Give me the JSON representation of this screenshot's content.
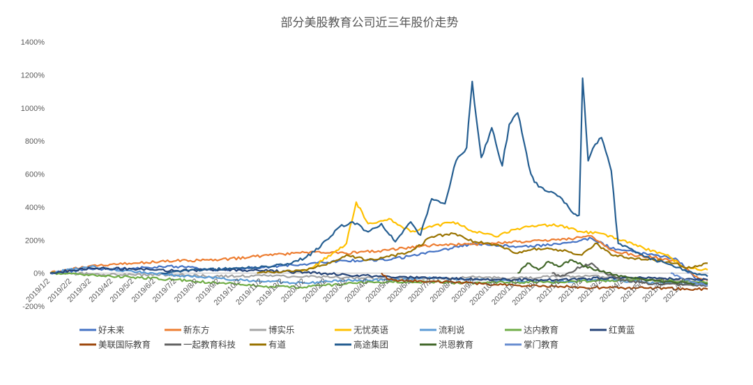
{
  "chart_data": {
    "type": "line",
    "title": "部分美股教育公司近三年股价走势",
    "xlabel": "",
    "ylabel": "",
    "ylim": [
      -200,
      1400
    ],
    "y_ticks": [
      "-200%",
      "0%",
      "200%",
      "400%",
      "600%",
      "800%",
      "1000%",
      "1200%",
      "1400%"
    ],
    "y_tick_values": [
      -200,
      0,
      200,
      400,
      600,
      800,
      1000,
      1200,
      1400
    ],
    "x_ticks": [
      "2019/1/2",
      "2019/2/2",
      "2019/3/2",
      "2019/4/2",
      "2019/5/2",
      "2019/6/2",
      "2019/7/2",
      "2019/8/2",
      "2019/9/2",
      "2019/10/2",
      "2019/11/2",
      "2019/12/2",
      "2020/1/2",
      "2020/2/2",
      "2020/3/2",
      "2020/4/2",
      "2020/5/2",
      "2020/6/2",
      "2020/7/2",
      "2020/8/2",
      "2020/9/2",
      "2020/10/2",
      "2020/11/2",
      "2020/12/2",
      "2021/1/2",
      "2021/2/2",
      "2021/3/2",
      "2021/4/2",
      "2021/5/2",
      "2021/6/2",
      "2021/7/2"
    ],
    "x_range": [
      "2019/1/2",
      "2021/8/1"
    ],
    "grid": false,
    "legend_position": "bottom",
    "series": [
      {
        "name": "好未来",
        "color": "#4472C4",
        "x": [
          "2019/1/2",
          "2019/3/1",
          "2019/5/1",
          "2019/7/1",
          "2019/9/1",
          "2019/11/1",
          "2020/1/1",
          "2020/3/1",
          "2020/5/1",
          "2020/7/1",
          "2020/9/1",
          "2020/11/1",
          "2021/1/1",
          "2021/2/15",
          "2021/3/15",
          "2021/4/15",
          "2021/5/15",
          "2021/6/15",
          "2021/7/15",
          "2021/7/31"
        ],
        "values": [
          0,
          25,
          30,
          40,
          20,
          35,
          55,
          75,
          80,
          130,
          180,
          160,
          175,
          210,
          150,
          130,
          110,
          90,
          -40,
          -60
        ]
      },
      {
        "name": "新东方",
        "color": "#ED7D31",
        "x": [
          "2019/1/2",
          "2019/3/1",
          "2019/5/1",
          "2019/7/1",
          "2019/9/1",
          "2019/11/1",
          "2020/1/1",
          "2020/3/1",
          "2020/5/1",
          "2020/7/1",
          "2020/9/1",
          "2020/11/1",
          "2021/1/1",
          "2021/2/15",
          "2021/3/15",
          "2021/4/15",
          "2021/5/15",
          "2021/6/15",
          "2021/7/15",
          "2021/7/31"
        ],
        "values": [
          0,
          45,
          60,
          75,
          80,
          105,
          125,
          120,
          140,
          170,
          175,
          190,
          200,
          225,
          140,
          110,
          95,
          75,
          -20,
          -45
        ]
      },
      {
        "name": "博实乐",
        "color": "#A5A5A5",
        "x": [
          "2019/1/2",
          "2019/3/1",
          "2019/5/1",
          "2019/7/1",
          "2019/9/1",
          "2019/11/1",
          "2020/1/1",
          "2020/3/1",
          "2020/5/1",
          "2020/7/1",
          "2020/9/1",
          "2020/11/1",
          "2021/1/1",
          "2021/2/15",
          "2021/3/15",
          "2021/4/15",
          "2021/5/15",
          "2021/6/15",
          "2021/7/15",
          "2021/7/31"
        ],
        "values": [
          0,
          -5,
          -10,
          -10,
          -20,
          -15,
          -20,
          -25,
          -35,
          -30,
          -25,
          -30,
          -20,
          -15,
          -30,
          -35,
          -40,
          -45,
          -55,
          -60
        ]
      },
      {
        "name": "无忧英语",
        "color": "#FFC000",
        "x": [
          "2019/12/15",
          "2020/1/15",
          "2020/2/10",
          "2020/3/1",
          "2020/3/15",
          "2020/4/1",
          "2020/5/1",
          "2020/6/1",
          "2020/7/1",
          "2020/8/1",
          "2020/9/1",
          "2020/10/1",
          "2020/11/1",
          "2020/12/1",
          "2021/1/1",
          "2021/2/1",
          "2021/3/1",
          "2021/4/1",
          "2021/5/1",
          "2021/6/1",
          "2021/7/1",
          "2021/7/31"
        ],
        "values": [
          0,
          40,
          120,
          180,
          430,
          300,
          330,
          250,
          280,
          310,
          250,
          220,
          270,
          290,
          290,
          250,
          240,
          200,
          150,
          110,
          30,
          20
        ]
      },
      {
        "name": "流利说",
        "color": "#5B9BD5",
        "x": [
          "2019/1/2",
          "2019/3/1",
          "2019/5/1",
          "2019/7/1",
          "2019/9/1",
          "2019/11/1",
          "2020/1/1",
          "2020/3/1",
          "2020/5/1",
          "2020/7/1",
          "2020/9/1",
          "2020/11/1",
          "2021/1/1",
          "2021/3/1",
          "2021/5/1",
          "2021/7/1",
          "2021/7/31"
        ],
        "values": [
          0,
          40,
          10,
          -15,
          -30,
          -50,
          -60,
          -45,
          -40,
          -30,
          -40,
          -45,
          -50,
          -40,
          -55,
          -65,
          -70
        ]
      },
      {
        "name": "达内教育",
        "color": "#70AD47",
        "x": [
          "2019/1/2",
          "2019/3/1",
          "2019/5/1",
          "2019/7/1",
          "2019/9/1",
          "2019/11/1",
          "2020/1/1",
          "2020/3/1",
          "2020/5/1",
          "2020/7/1",
          "2020/9/1",
          "2020/11/1",
          "2021/1/1",
          "2021/3/1",
          "2021/5/1",
          "2021/7/1",
          "2021/7/31"
        ],
        "values": [
          0,
          -10,
          -25,
          -40,
          -60,
          -80,
          -85,
          -65,
          -50,
          -55,
          -60,
          -55,
          -55,
          -45,
          -40,
          -50,
          -55
        ]
      },
      {
        "name": "红黄蓝",
        "color": "#264478",
        "x": [
          "2019/1/2",
          "2019/3/1",
          "2019/5/1",
          "2019/7/1",
          "2019/9/1",
          "2019/11/1",
          "2020/1/1",
          "2020/3/1",
          "2020/5/1",
          "2020/7/1",
          "2020/9/1",
          "2020/11/1",
          "2021/1/1",
          "2021/3/1",
          "2021/5/1",
          "2021/7/1",
          "2021/7/31"
        ],
        "values": [
          0,
          30,
          25,
          15,
          20,
          15,
          5,
          -10,
          -20,
          -30,
          -35,
          -40,
          -40,
          -30,
          -30,
          -35,
          -40
        ]
      },
      {
        "name": "美联国际教育",
        "color": "#9E480E",
        "x": [
          "2020/4/20",
          "2020/5/1",
          "2020/6/1",
          "2020/7/1",
          "2020/8/1",
          "2020/9/1",
          "2020/10/1",
          "2020/11/1",
          "2020/12/1",
          "2021/1/1",
          "2021/2/1",
          "2021/3/1",
          "2021/4/1",
          "2021/5/1",
          "2021/6/1",
          "2021/7/1",
          "2021/7/31"
        ],
        "values": [
          0,
          -40,
          -45,
          -50,
          -55,
          -60,
          -70,
          -75,
          -80,
          -80,
          -85,
          -88,
          -90,
          -90,
          -92,
          -95,
          -96
        ]
      },
      {
        "name": "一起教育科技",
        "color": "#636363",
        "x": [
          "2020/12/20",
          "2021/1/1",
          "2021/2/1",
          "2021/2/15",
          "2021/3/1",
          "2021/4/1",
          "2021/5/1",
          "2021/6/1",
          "2021/7/1",
          "2021/7/31"
        ],
        "values": [
          0,
          -20,
          40,
          60,
          10,
          -40,
          -60,
          -65,
          -70,
          -75
        ]
      },
      {
        "name": "有道",
        "color": "#997300",
        "x": [
          "2019/10/25",
          "2019/12/1",
          "2020/1/1",
          "2020/2/1",
          "2020/3/1",
          "2020/4/1",
          "2020/5/1",
          "2020/6/1",
          "2020/7/1",
          "2020/8/1",
          "2020/9/1",
          "2020/10/1",
          "2020/11/1",
          "2020/12/1",
          "2021/1/1",
          "2021/2/1",
          "2021/2/20",
          "2021/3/15",
          "2021/4/15",
          "2021/5/15",
          "2021/6/15",
          "2021/7/1",
          "2021/7/31"
        ],
        "values": [
          0,
          10,
          20,
          50,
          110,
          80,
          100,
          130,
          220,
          240,
          190,
          170,
          120,
          150,
          140,
          110,
          180,
          110,
          90,
          80,
          60,
          30,
          60
        ]
      },
      {
        "name": "高途集团",
        "color": "#255E91",
        "x": [
          "2019/6/10",
          "2019/8/1",
          "2019/10/1",
          "2019/12/1",
          "2020/1/1",
          "2020/1/15",
          "2020/2/1",
          "2020/2/20",
          "2020/3/10",
          "2020/4/1",
          "2020/4/20",
          "2020/5/10",
          "2020/6/1",
          "2020/6/15",
          "2020/7/1",
          "2020/7/20",
          "2020/8/5",
          "2020/8/20",
          "2020/8/28",
          "2020/9/10",
          "2020/9/25",
          "2020/10/10",
          "2020/10/20",
          "2020/11/1",
          "2020/11/20",
          "2020/11/25",
          "2020/12/10",
          "2020/12/25",
          "2021/1/10",
          "2021/1/20",
          "2021/1/28",
          "2021/2/2",
          "2021/2/10",
          "2021/2/20",
          "2021/3/1",
          "2021/3/10",
          "2021/3/15",
          "2021/3/25",
          "2021/4/10",
          "2021/5/1",
          "2021/6/1",
          "2021/7/1",
          "2021/7/31"
        ],
        "values": [
          0,
          20,
          30,
          50,
          90,
          130,
          200,
          280,
          310,
          250,
          300,
          190,
          310,
          230,
          450,
          420,
          680,
          760,
          1160,
          700,
          880,
          650,
          900,
          970,
          600,
          550,
          500,
          480,
          420,
          360,
          350,
          1180,
          680,
          780,
          820,
          700,
          620,
          180,
          150,
          100,
          60,
          10,
          -20
        ]
      },
      {
        "name": "洪恩教育",
        "color": "#43682B",
        "x": [
          "2020/11/1",
          "2020/11/15",
          "2020/12/1",
          "2020/12/15",
          "2021/1/1",
          "2021/1/15",
          "2021/2/1",
          "2021/2/15",
          "2021/3/1",
          "2021/4/1",
          "2021/5/1",
          "2021/6/1",
          "2021/7/1",
          "2021/7/31"
        ],
        "values": [
          0,
          60,
          20,
          70,
          40,
          80,
          50,
          30,
          10,
          -20,
          -40,
          -50,
          -60,
          -65
        ]
      },
      {
        "name": "掌门教育",
        "color": "#698ED0",
        "x": [
          "2021/6/8",
          "2021/6/20",
          "2021/7/1",
          "2021/7/15",
          "2021/7/31"
        ],
        "values": [
          0,
          -20,
          -40,
          -60,
          -75
        ]
      }
    ]
  }
}
